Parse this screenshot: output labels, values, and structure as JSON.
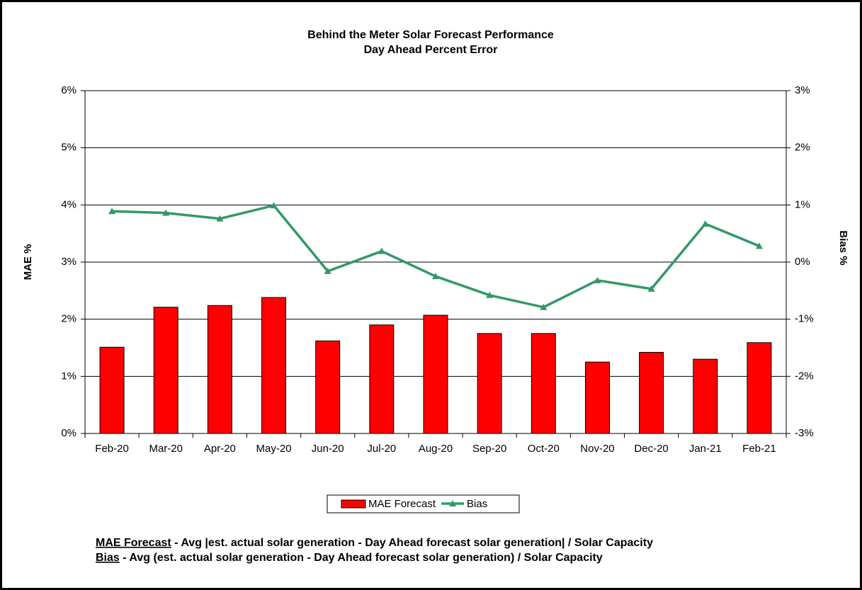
{
  "chart_data": {
    "type": "bar-line",
    "title": "Behind the Meter Solar Forecast Performance",
    "subtitle": "Day Ahead Percent Error",
    "ylabel": "MAE %",
    "y2label": "Bias %",
    "categories": [
      "Feb-20",
      "Mar-20",
      "Apr-20",
      "May-20",
      "Jun-20",
      "Jul-20",
      "Aug-20",
      "Sep-20",
      "Oct-20",
      "Nov-20",
      "Dec-20",
      "Jan-21",
      "Feb-21"
    ],
    "series": [
      {
        "name": "MAE Forecast",
        "type": "bar",
        "color": "#ff0000",
        "values": [
          1.51,
          2.21,
          2.24,
          2.38,
          1.62,
          1.9,
          2.07,
          1.75,
          1.75,
          1.25,
          1.42,
          1.3,
          1.59
        ]
      },
      {
        "name": "Bias",
        "type": "line",
        "axis": "y2",
        "color": "#339966",
        "values": [
          0.89,
          0.86,
          0.76,
          0.99,
          -0.16,
          0.19,
          -0.25,
          -0.58,
          -0.79,
          -0.32,
          -0.47,
          0.67,
          0.28
        ]
      }
    ],
    "ylim": [
      0,
      6
    ],
    "yticks": [
      {
        "value": 0,
        "label": "0%"
      },
      {
        "value": 1,
        "label": "1%"
      },
      {
        "value": 2,
        "label": "2%"
      },
      {
        "value": 3,
        "label": "3%"
      },
      {
        "value": 4,
        "label": "4%"
      },
      {
        "value": 5,
        "label": "5%"
      },
      {
        "value": 6,
        "label": "6%"
      }
    ],
    "y2lim": [
      -3,
      3
    ],
    "y2ticks": [
      {
        "value": -3,
        "label": "-3%"
      },
      {
        "value": -2,
        "label": "-2%"
      },
      {
        "value": -1,
        "label": "-1%"
      },
      {
        "value": 0,
        "label": "0%"
      },
      {
        "value": 1,
        "label": "1%"
      },
      {
        "value": 2,
        "label": "2%"
      },
      {
        "value": 3,
        "label": "3%"
      }
    ],
    "grid": true,
    "legend": "bottom",
    "notes": [
      {
        "term": "MAE Forecast",
        "text": " - Avg |est. actual solar generation - Day Ahead forecast solar generation| / Solar Capacity"
      },
      {
        "term": "Bias",
        "text": " - Avg (est. actual solar generation - Day Ahead forecast solar generation) / Solar Capacity"
      }
    ]
  }
}
